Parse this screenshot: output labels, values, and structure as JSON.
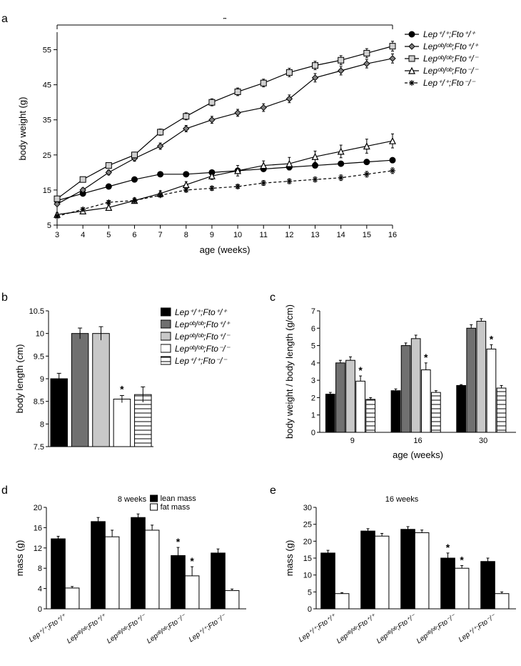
{
  "genotypes": {
    "g1": {
      "label": "Lep⁺/⁺;Fto⁺/⁺",
      "fill": "#000000"
    },
    "g2": {
      "label": "Lepᵒᵇ/ᵒᵇ;Fto⁺/⁺",
      "fill": "#707070"
    },
    "g3": {
      "label": "Lepᵒᵇ/ᵒᵇ;Fto⁺/⁻",
      "fill": "#c8c8c8"
    },
    "g4": {
      "label": "Lepᵒᵇ/ᵒᵇ;Fto⁻/⁻",
      "fill": "#ffffff"
    },
    "g5": {
      "label": "Lep⁺/⁺;Fto⁻/⁻",
      "fill": "hatched"
    }
  },
  "panel_a": {
    "ylabel": "body weight (g)",
    "xlabel": "age (weeks)",
    "xvals": [
      3,
      4,
      5,
      6,
      7,
      8,
      9,
      10,
      11,
      12,
      13,
      14,
      15,
      16
    ],
    "ylim": [
      5,
      60
    ],
    "ytick_step": 10,
    "sig_bracket": true,
    "series": {
      "g1": {
        "marker": "circle",
        "dash": false,
        "y": [
          12,
          14,
          16,
          18,
          19.5,
          19.5,
          20,
          20.5,
          21,
          21.5,
          22,
          22.5,
          23,
          23.5
        ],
        "err": [
          0.5,
          0.5,
          0.5,
          0.5,
          0.5,
          0.5,
          0.5,
          0.6,
          0.6,
          0.6,
          0.6,
          0.6,
          0.7,
          0.7
        ]
      },
      "g2": {
        "marker": "diamond",
        "dash": false,
        "y": [
          11,
          15,
          20,
          24,
          27.5,
          32.5,
          35,
          37,
          38.5,
          41,
          47,
          49,
          51,
          52.5
        ],
        "err": [
          0.5,
          0.6,
          0.7,
          0.8,
          0.9,
          0.9,
          1,
          1,
          1.1,
          1.1,
          1.2,
          1.2,
          1.2,
          1.3
        ]
      },
      "g3": {
        "marker": "square",
        "dash": false,
        "y": [
          12.5,
          18,
          22,
          25,
          31.5,
          36,
          40,
          43,
          45.5,
          48.5,
          50.5,
          52,
          54,
          56
        ],
        "err": [
          0.5,
          0.6,
          0.7,
          0.8,
          0.9,
          1,
          1,
          1.1,
          1.1,
          1.2,
          1.2,
          1.3,
          1.3,
          1.4
        ]
      },
      "g4": {
        "marker": "triangle",
        "dash": false,
        "y": [
          8,
          9,
          10,
          12,
          14,
          16.5,
          19,
          20.5,
          22,
          22.5,
          24.5,
          26,
          27.5,
          29
        ],
        "err": [
          0.5,
          0.6,
          0.7,
          0.8,
          0.8,
          0.9,
          1,
          1.5,
          1.3,
          1.8,
          1.6,
          1.8,
          2,
          2
        ]
      },
      "g5": {
        "marker": "star",
        "dash": true,
        "y": [
          7.5,
          9.5,
          11.5,
          12,
          13.5,
          15,
          15.5,
          16,
          17,
          17.5,
          18,
          18.5,
          19.5,
          20.5
        ],
        "err": [
          0.4,
          0.4,
          0.5,
          0.5,
          0.5,
          0.6,
          0.6,
          0.6,
          0.7,
          0.7,
          0.7,
          0.8,
          0.8,
          0.8
        ]
      }
    }
  },
  "panel_b": {
    "ylabel": "body length (cm)",
    "ylim": [
      7.5,
      10.5
    ],
    "yticks": [
      7.5,
      8,
      8.5,
      9,
      9.5,
      10,
      10.5
    ],
    "groups": [
      "g1",
      "g2",
      "g3",
      "g4",
      "g5"
    ],
    "values": [
      9.0,
      10.0,
      10.0,
      8.55,
      8.65
    ],
    "err": [
      0.12,
      0.12,
      0.15,
      0.08,
      0.17
    ],
    "sig": [
      false,
      false,
      false,
      true,
      false
    ]
  },
  "panel_c": {
    "ylabel": "body weight / body length (g/cm)",
    "xlabel": "age (weeks)",
    "ylim": [
      0,
      7
    ],
    "ytick_step": 1,
    "ages": [
      9,
      16,
      30
    ],
    "groups": [
      "g1",
      "g2",
      "g3",
      "g4",
      "g5"
    ],
    "values": {
      "9": [
        2.2,
        4.0,
        4.15,
        2.95,
        1.9
      ],
      "16": [
        2.4,
        5.0,
        5.4,
        3.6,
        2.3
      ],
      "30": [
        2.7,
        6.0,
        6.4,
        4.8,
        2.55
      ]
    },
    "err": {
      "9": [
        0.1,
        0.15,
        0.2,
        0.3,
        0.1
      ],
      "16": [
        0.1,
        0.15,
        0.2,
        0.4,
        0.1
      ],
      "30": [
        0.05,
        0.2,
        0.15,
        0.25,
        0.15
      ]
    },
    "sig": {
      "9": [
        3
      ],
      "16": [
        3
      ],
      "30": [
        3
      ]
    }
  },
  "panel_d": {
    "title": "8 weeks",
    "ylabel": "mass (g)",
    "ylim": [
      0,
      20
    ],
    "ytick_step": 4,
    "legend": {
      "lean": "lean mass",
      "fat": "fat mass",
      "lean_fill": "#000000",
      "fat_fill": "#ffffff"
    },
    "groups": [
      "g1",
      "g2",
      "g3",
      "g4",
      "g5"
    ],
    "lean": [
      13.8,
      17.2,
      18.0,
      10.5,
      11.0
    ],
    "lean_err": [
      0.5,
      0.8,
      0.7,
      1.6,
      0.8
    ],
    "fat": [
      4.1,
      14.2,
      15.5,
      6.5,
      3.6
    ],
    "fat_err": [
      0.3,
      1.3,
      1.0,
      1.8,
      0.3
    ],
    "sig_lean": [
      false,
      false,
      false,
      true,
      false
    ],
    "sig_fat": [
      false,
      false,
      false,
      true,
      false
    ]
  },
  "panel_e": {
    "title": "16 weeks",
    "ylabel": "mass (g)",
    "ylim": [
      0,
      30
    ],
    "ytick_step": 5,
    "groups": [
      "g1",
      "g2",
      "g3",
      "g4",
      "g5"
    ],
    "lean": [
      16.5,
      23.0,
      23.5,
      15.0,
      14.0
    ],
    "lean_err": [
      0.8,
      0.7,
      0.8,
      1.5,
      1.0
    ],
    "fat": [
      4.5,
      21.5,
      22.5,
      12.0,
      4.5
    ],
    "fat_err": [
      0.3,
      0.8,
      0.8,
      0.8,
      0.5
    ],
    "sig_lean": [
      false,
      false,
      false,
      true,
      false
    ],
    "sig_fat": [
      false,
      false,
      false,
      true,
      false
    ]
  },
  "x_genotype_labels": [
    "Lep⁺/⁺;Fto⁺/⁺",
    "Lepᵒᵇ/ᵒᵇ;Fto⁺/⁺",
    "Lepᵒᵇ/ᵒᵇ;Fto⁺/⁻",
    "Lepᵒᵇ/ᵒᵇ;Fto⁻/⁻",
    "Lep⁺/⁺;Fto⁻/⁻"
  ]
}
